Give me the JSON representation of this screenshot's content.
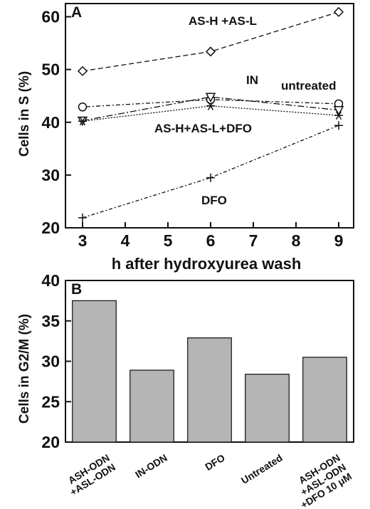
{
  "chart_data": [
    {
      "panel_label": "A",
      "type": "line",
      "x": [
        3,
        6,
        9
      ],
      "xlabel": "h after hydroxyurea wash",
      "ylabel": "Cells in S (%)",
      "xlim": [
        2.6,
        9.35
      ],
      "ylim": [
        20,
        62.5
      ],
      "xticks": [
        "3",
        "4",
        "5",
        "6",
        "7",
        "8",
        "9"
      ],
      "yticks": [
        "20",
        "30",
        "40",
        "50",
        "60"
      ],
      "grid": false,
      "series": [
        {
          "name": "AS-H +AS-L",
          "marker": "diamond",
          "dash": "7,4",
          "values": [
            49.7,
            53.4,
            60.9
          ]
        },
        {
          "name": "untreated",
          "marker": "circle",
          "dash": "2,3,6,3",
          "values": [
            42.9,
            44.3,
            43.5
          ]
        },
        {
          "name": "IN",
          "marker": "triangle-down",
          "dash": "9,3,2,3",
          "values": [
            40.3,
            44.8,
            42.3
          ]
        },
        {
          "name": "AS-H+AS-L+DFO",
          "marker": "asterisk",
          "dash": "2,2",
          "values": [
            40.2,
            43.1,
            41.3
          ]
        },
        {
          "name": "DFO",
          "marker": "plus",
          "dash": "5,3,2,3",
          "values": [
            21.9,
            29.5,
            39.4
          ]
        }
      ]
    },
    {
      "panel_label": "B",
      "type": "bar",
      "categories": [
        "ASH-ODN +ASL-ODN",
        "IN-ODN",
        "DFO",
        "Untreated",
        "ASH-ODN +ASL-ODN +DFO 10 μM"
      ],
      "category_lines": [
        [
          "ASH-ODN",
          "+ASL-ODN"
        ],
        [
          "IN-ODN"
        ],
        [
          "DFO"
        ],
        [
          "Untreated"
        ],
        [
          "ASH-ODN",
          "+ASL-ODN",
          "+DFO 10 μM"
        ]
      ],
      "values": [
        37.5,
        28.9,
        32.9,
        28.4,
        30.5
      ],
      "xlabel": "",
      "ylabel": "Cells in G2/M (%)",
      "ylim": [
        20,
        40
      ],
      "yticks": [
        "20",
        "25",
        "30",
        "35",
        "40"
      ],
      "bar_color": "#b5b5b5",
      "grid": false
    }
  ]
}
